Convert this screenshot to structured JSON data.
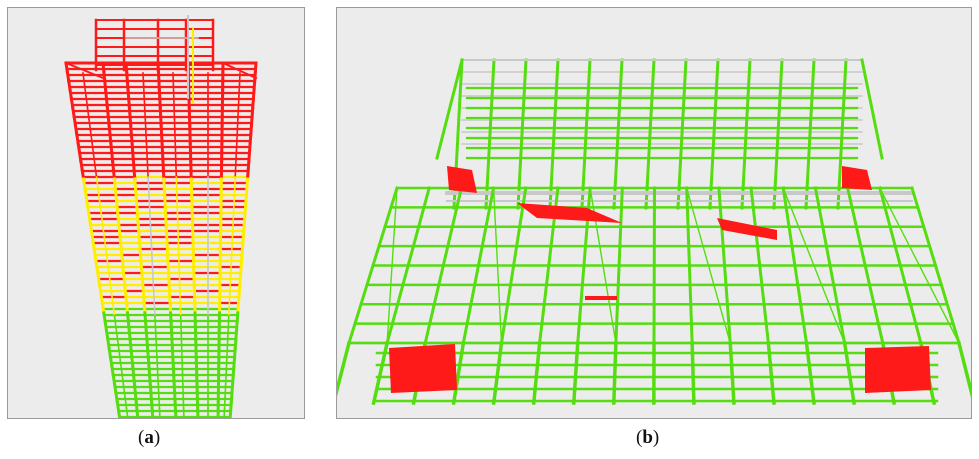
{
  "panels": [
    {
      "id": "a",
      "label": "a"
    },
    {
      "id": "b",
      "label": "b"
    }
  ],
  "colors": {
    "background": "#ececec",
    "border": "#9a9a9a",
    "red": "#ff1a1a",
    "yellow": "#ffee00",
    "green": "#55dd11",
    "grey": "#c8c8c8"
  }
}
